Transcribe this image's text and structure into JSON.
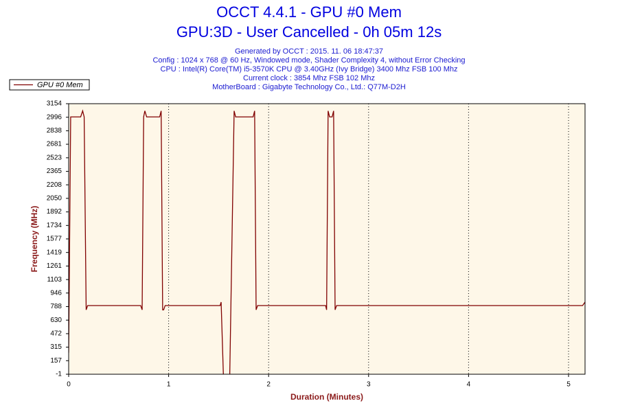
{
  "chart_data": {
    "type": "line",
    "title": "OCCT 4.4.1 - GPU #0 Mem",
    "subtitle": "GPU:3D - User Cancelled - 0h 05m 12s",
    "annotations": [
      "Generated by OCCT : 2015. 11. 06 18:47:37",
      "Config : 1024 x 768 @ 60 Hz, Windowed mode, Shader Complexity 4, without Error Checking",
      "CPU : Intel(R) Core(TM) i5-3570K CPU @ 3.40GHz (Ivy Bridge) 3400 Mhz FSB 100 Mhz",
      "Current clock : 3854 Mhz FSB 102 Mhz",
      "MotherBoard : Gigabyte Technology Co., Ltd.: Q77M-D2H"
    ],
    "x_label": "Duration (Minutes)",
    "y_label": "Frequency (MHz)",
    "x": [
      0,
      0.02,
      0.04,
      0.12,
      0.14,
      0.155,
      0.175,
      0.19,
      0.72,
      0.735,
      0.75,
      0.762,
      0.78,
      0.91,
      0.925,
      0.94,
      0.95,
      0.965,
      1.515,
      1.525,
      1.55,
      1.61,
      1.655,
      1.67,
      1.845,
      1.86,
      1.875,
      1.89,
      2.57,
      2.58,
      2.595,
      2.61,
      2.635,
      2.65,
      2.665,
      2.68,
      5.14,
      5.165
    ],
    "series": [
      {
        "name": "GPU #0 Mem",
        "color": "#800000",
        "values": [
          250,
          3000,
          3000,
          3000,
          3070,
          3000,
          750,
          800,
          800,
          750,
          3000,
          3070,
          3000,
          3000,
          3070,
          750,
          750,
          800,
          800,
          840,
          -100,
          -100,
          3070,
          3000,
          3000,
          3070,
          750,
          800,
          800,
          750,
          3070,
          3000,
          3000,
          3070,
          750,
          800,
          800,
          840
        ]
      }
    ],
    "xlim": [
      0,
      5.165
    ],
    "ylim": [
      -1,
      3154
    ],
    "xticks": [
      0,
      1,
      2,
      3,
      4,
      5
    ],
    "yticks": [
      -1,
      157,
      315,
      472,
      630,
      788,
      946,
      1103,
      1261,
      1419,
      1577,
      1734,
      1892,
      2050,
      2208,
      2365,
      2523,
      2681,
      2838,
      2996,
      3154
    ],
    "xgrid": true,
    "plot_background": "#fef7e8",
    "legend": "top-left"
  }
}
